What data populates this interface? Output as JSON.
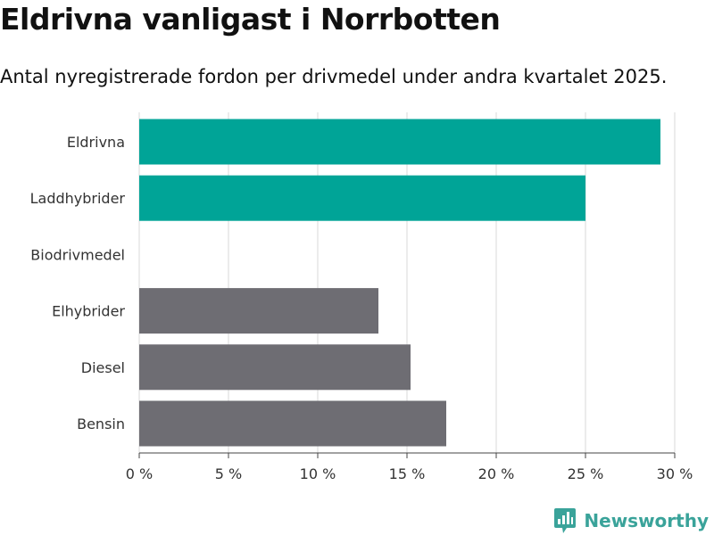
{
  "title": "Eldrivna vanligast i Norrbotten",
  "subtitle": "Antal nyregistrerade fordon per drivmedel under andra kvartalet 2025.",
  "brand": "Newsworthy",
  "colors": {
    "highlight": "#00a497",
    "default": "#6e6d73",
    "grid": "#d9d9d9",
    "brand": "#3aa39a"
  },
  "chart_data": {
    "type": "bar",
    "orientation": "horizontal",
    "categories": [
      "Eldrivna",
      "Laddhybrider",
      "Biodrivmedel",
      "Elhybrider",
      "Diesel",
      "Bensin"
    ],
    "values": [
      29.2,
      25.0,
      0,
      13.4,
      15.2,
      17.2
    ],
    "highlighted": [
      true,
      true,
      false,
      false,
      false,
      false
    ],
    "xlim": [
      0,
      30
    ],
    "xticks": [
      0,
      5,
      10,
      15,
      20,
      25,
      30
    ],
    "xtick_labels": [
      "0 %",
      "5 %",
      "10 %",
      "15 %",
      "20 %",
      "25 %",
      "30 %"
    ],
    "grid": true
  }
}
